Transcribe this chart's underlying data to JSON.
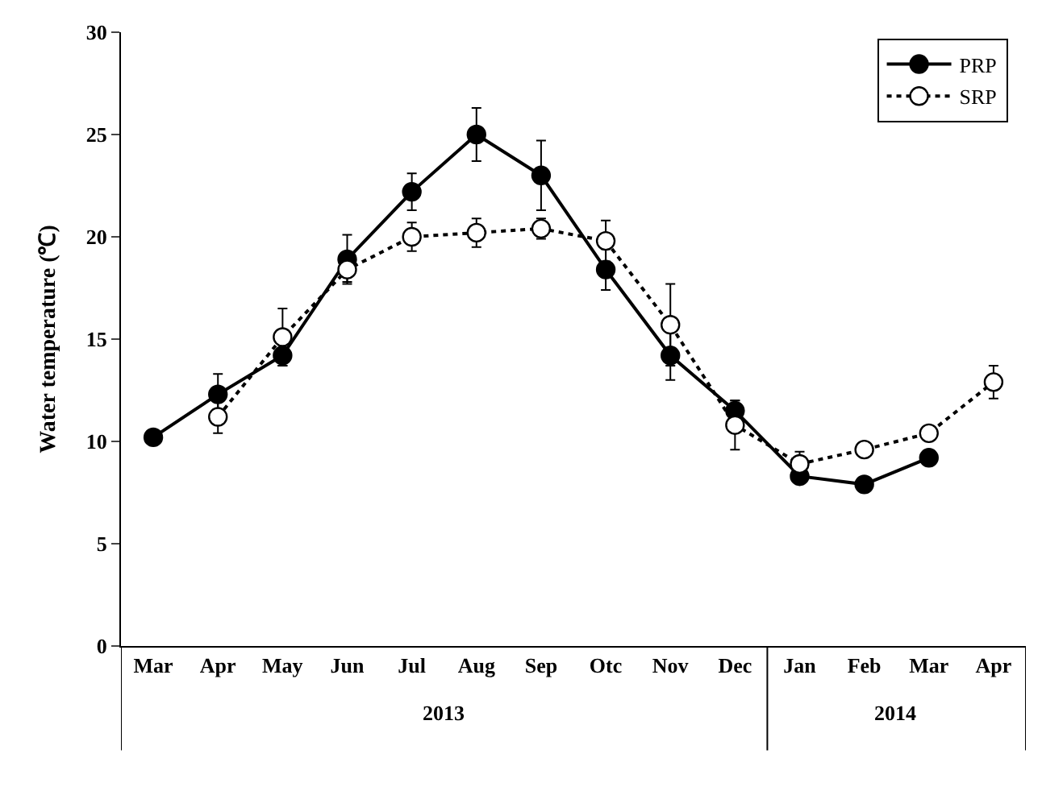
{
  "chart_data": {
    "type": "line",
    "ylabel": "Water temperature (℃)",
    "categories": [
      "Mar",
      "Apr",
      "May",
      "Jun",
      "Jul",
      "Aug",
      "Sep",
      "Otc",
      "Nov",
      "Dec",
      "Jan",
      "Feb",
      "Mar",
      "Apr"
    ],
    "series": [
      {
        "name": "PRP",
        "color": "#000000",
        "line_style": "solid",
        "values": [
          10.2,
          12.3,
          14.2,
          18.9,
          22.2,
          25.0,
          23.0,
          18.4,
          14.2,
          11.5,
          8.3,
          7.9,
          9.2,
          null
        ],
        "errors": [
          null,
          1.0,
          0.5,
          1.2,
          0.9,
          1.3,
          1.7,
          1.0,
          1.2,
          0.5,
          null,
          null,
          null,
          null
        ]
      },
      {
        "name": "SRP",
        "color": "#000000",
        "line_style": "dotted",
        "values": [
          null,
          11.2,
          15.1,
          18.4,
          20.0,
          20.2,
          20.4,
          19.8,
          15.7,
          10.8,
          8.9,
          9.6,
          10.4,
          12.9
        ],
        "errors": [
          null,
          0.8,
          1.4,
          0.6,
          0.7,
          0.7,
          0.5,
          1.0,
          2.0,
          1.2,
          0.6,
          null,
          null,
          0.8
        ]
      }
    ],
    "annotations": [
      "2013",
      "2014"
    ],
    "ylim": [
      0,
      30
    ],
    "yticks": [
      0,
      5,
      10,
      15,
      20,
      25,
      30
    ],
    "legend": "top right",
    "marker": "circle"
  }
}
